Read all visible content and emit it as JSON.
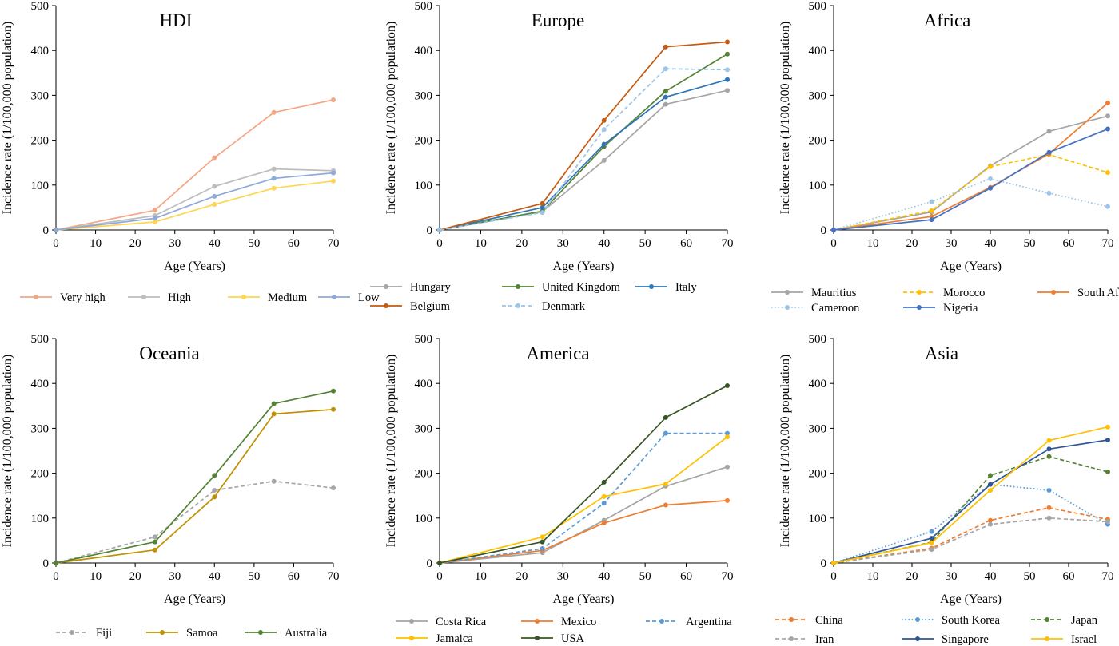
{
  "chart_data": [
    {
      "type": "line",
      "title": "HDI",
      "xlabel": "Age (Years)",
      "ylabel": "Incidence rate (1/100,000 population)",
      "xlim": [
        0,
        70
      ],
      "ylim": [
        0,
        500
      ],
      "xticks": [
        "0",
        "10",
        "20",
        "30",
        "40",
        "50",
        "60",
        "70"
      ],
      "yticks": [
        "0",
        "100",
        "200",
        "300",
        "400",
        "500"
      ],
      "grid": false,
      "legend": "bottom",
      "x": [
        0,
        25,
        40,
        55,
        70
      ],
      "series": [
        {
          "name": "Very high",
          "color": "#F4A582",
          "dash": "solid",
          "values": [
            0,
            44,
            161,
            262,
            290
          ]
        },
        {
          "name": "High",
          "color": "#BDBDBD",
          "dash": "solid",
          "values": [
            0,
            32,
            97,
            136,
            132
          ]
        },
        {
          "name": "Medium",
          "color": "#FFD54F",
          "dash": "solid",
          "values": [
            0,
            18,
            57,
            93,
            109
          ]
        },
        {
          "name": "Low",
          "color": "#8EA9DB",
          "dash": "solid",
          "values": [
            0,
            26,
            75,
            115,
            127
          ]
        }
      ]
    },
    {
      "type": "line",
      "title": "Europe",
      "xlabel": "Age (Years)",
      "ylabel": "Incidence rate (1/100,000 population)",
      "xlim": [
        0,
        70
      ],
      "ylim": [
        0,
        500
      ],
      "xticks": [
        "0",
        "10",
        "20",
        "30",
        "40",
        "50",
        "60",
        "70"
      ],
      "yticks": [
        "0",
        "100",
        "200",
        "300",
        "400",
        "500"
      ],
      "grid": false,
      "legend": "bottom",
      "x": [
        0,
        25,
        40,
        55,
        70
      ],
      "series": [
        {
          "name": "Hungary",
          "color": "#A5A5A5",
          "dash": "solid",
          "values": [
            0,
            41,
            155,
            280,
            311
          ]
        },
        {
          "name": "United Kingdom",
          "color": "#548235",
          "dash": "solid",
          "values": [
            0,
            42,
            186,
            309,
            392
          ]
        },
        {
          "name": "Italy",
          "color": "#2E75B6",
          "dash": "solid",
          "values": [
            0,
            50,
            191,
            296,
            335
          ]
        },
        {
          "name": "Belgium",
          "color": "#C55A11",
          "dash": "solid",
          "values": [
            0,
            59,
            244,
            408,
            419
          ]
        },
        {
          "name": "Denmark",
          "color": "#9DC3E6",
          "dash": "dashed",
          "values": [
            0,
            39,
            224,
            359,
            357
          ]
        }
      ]
    },
    {
      "type": "line",
      "title": "Africa",
      "xlabel": "Age (Years)",
      "ylabel": "Incidence rate (1/100,000 population)",
      "xlim": [
        0,
        70
      ],
      "ylim": [
        0,
        500
      ],
      "xticks": [
        "0",
        "10",
        "20",
        "30",
        "40",
        "50",
        "60",
        "70"
      ],
      "yticks": [
        "0",
        "100",
        "200",
        "300",
        "400",
        "500"
      ],
      "grid": false,
      "legend": "bottom",
      "x": [
        0,
        25,
        40,
        55,
        70
      ],
      "series": [
        {
          "name": "Mauritius",
          "color": "#A5A5A5",
          "dash": "solid",
          "values": [
            0,
            40,
            143,
            220,
            254
          ]
        },
        {
          "name": "Morocco",
          "color": "#FFC000",
          "dash": "dashed",
          "values": [
            0,
            43,
            141,
            168,
            128
          ]
        },
        {
          "name": "South Africa",
          "color": "#ED7D31",
          "dash": "solid",
          "values": [
            0,
            30,
            95,
            170,
            283
          ]
        },
        {
          "name": "Cameroon",
          "color": "#9DC3E6",
          "dash": "dotted",
          "values": [
            0,
            63,
            114,
            82,
            52
          ]
        },
        {
          "name": "Nigeria",
          "color": "#4472C4",
          "dash": "solid",
          "values": [
            0,
            23,
            93,
            173,
            225
          ]
        }
      ]
    },
    {
      "type": "line",
      "title": "Oceania",
      "xlabel": "Age (Years)",
      "ylabel": "Incidence rate (1/100,000 population)",
      "xlim": [
        0,
        70
      ],
      "ylim": [
        0,
        500
      ],
      "xticks": [
        "0",
        "10",
        "20",
        "30",
        "40",
        "50",
        "60",
        "70"
      ],
      "yticks": [
        "0",
        "100",
        "200",
        "300",
        "400",
        "500"
      ],
      "grid": false,
      "legend": "bottom",
      "x": [
        0,
        25,
        40,
        55,
        70
      ],
      "series": [
        {
          "name": "Fiji",
          "color": "#A5A5A5",
          "dash": "dashed",
          "values": [
            0,
            58,
            162,
            182,
            167
          ]
        },
        {
          "name": "Samoa",
          "color": "#BF9000",
          "dash": "solid",
          "values": [
            0,
            29,
            147,
            332,
            342
          ]
        },
        {
          "name": "Australia",
          "color": "#548235",
          "dash": "solid",
          "values": [
            0,
            47,
            195,
            355,
            383
          ]
        }
      ]
    },
    {
      "type": "line",
      "title": "America",
      "xlabel": "Age (Years)",
      "ylabel": "Incidence rate (1/100,000 population)",
      "xlim": [
        0,
        70
      ],
      "ylim": [
        0,
        500
      ],
      "xticks": [
        "0",
        "10",
        "20",
        "30",
        "40",
        "50",
        "60",
        "70"
      ],
      "yticks": [
        "0",
        "100",
        "200",
        "300",
        "400",
        "500"
      ],
      "grid": false,
      "legend": "bottom",
      "x": [
        0,
        25,
        40,
        55,
        70
      ],
      "series": [
        {
          "name": "Costa Rica",
          "color": "#A5A5A5",
          "dash": "solid",
          "values": [
            0,
            23,
            95,
            171,
            214
          ]
        },
        {
          "name": "Mexico",
          "color": "#ED7D31",
          "dash": "solid",
          "values": [
            0,
            28,
            89,
            129,
            139
          ]
        },
        {
          "name": "Argentina",
          "color": "#5B9BD5",
          "dash": "dashed",
          "values": [
            0,
            32,
            133,
            289,
            289
          ]
        },
        {
          "name": "Jamaica",
          "color": "#FFC000",
          "dash": "solid",
          "values": [
            0,
            58,
            148,
            176,
            281
          ]
        },
        {
          "name": "USA",
          "color": "#375623",
          "dash": "solid",
          "values": [
            0,
            47,
            180,
            324,
            395
          ]
        }
      ]
    },
    {
      "type": "line",
      "title": "Asia",
      "xlabel": "Age (Years)",
      "ylabel": "Incidence rate (1/100,000 population)",
      "xlim": [
        0,
        70
      ],
      "ylim": [
        0,
        500
      ],
      "xticks": [
        "0",
        "10",
        "20",
        "30",
        "40",
        "50",
        "60",
        "70"
      ],
      "yticks": [
        "0",
        "100",
        "200",
        "300",
        "400",
        "500"
      ],
      "grid": false,
      "legend": "bottom",
      "x": [
        0,
        25,
        40,
        55,
        70
      ],
      "series": [
        {
          "name": "China",
          "color": "#ED7D31",
          "dash": "dashed",
          "values": [
            0,
            33,
            95,
            123,
            97
          ]
        },
        {
          "name": "South Korea",
          "color": "#5B9BD5",
          "dash": "dotted",
          "values": [
            0,
            70,
            175,
            162,
            86
          ]
        },
        {
          "name": "Japan",
          "color": "#548235",
          "dash": "dashed",
          "values": [
            0,
            46,
            195,
            237,
            203
          ]
        },
        {
          "name": "Iran",
          "color": "#A5A5A5",
          "dash": "dashed",
          "values": [
            0,
            30,
            86,
            100,
            92
          ]
        },
        {
          "name": "Singapore",
          "color": "#2F5597",
          "dash": "solid",
          "values": [
            0,
            55,
            175,
            254,
            274
          ]
        },
        {
          "name": "Israel",
          "color": "#FFC000",
          "dash": "solid",
          "values": [
            0,
            45,
            162,
            273,
            303
          ]
        }
      ]
    }
  ]
}
